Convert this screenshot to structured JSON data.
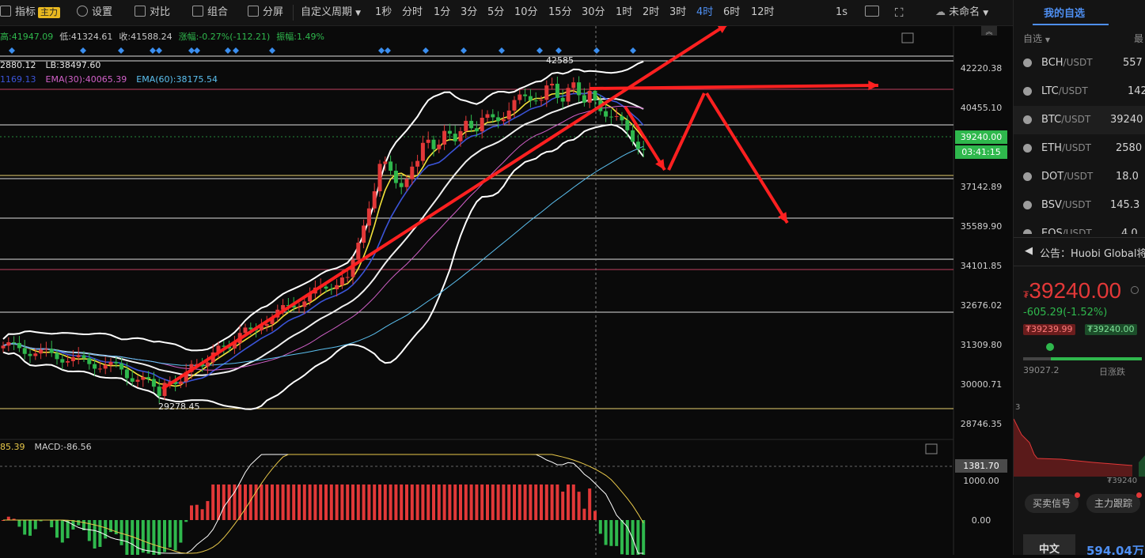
{
  "toolbar": {
    "indicator_label": "指标",
    "indicator_badge": "主力",
    "settings_label": "设置",
    "compare_label": "对比",
    "combo_label": "组合",
    "split_label": "分屏",
    "custom_period_label": "自定义周期",
    "periods": [
      "1秒",
      "分时",
      "1分",
      "3分",
      "5分",
      "10分",
      "15分",
      "30分",
      "1时",
      "2时",
      "3时",
      "4时",
      "6时",
      "12时"
    ],
    "active_period": "4时",
    "interval_label": "1s",
    "layout_name": "未命名"
  },
  "ohlc": {
    "high": "高:41947.09",
    "low": "低:41324.61",
    "close": "收:41588.24",
    "change": "涨幅:-0.27%(-112.21)",
    "amplitude": "振幅:1.49%"
  },
  "indicators": {
    "ub": "2880.12",
    "lb": "LB:38497.60",
    "ema_short": "1169.13",
    "ema30": "EMA(30):40065.39",
    "ema60": "EMA(60):38175.54",
    "macd_left": "85.39",
    "macd": "MACD:-86.56"
  },
  "annotations": {
    "peak": "42585",
    "trough": "29278.45"
  },
  "price_axis": [
    "42220.38",
    "40455.10",
    "37142.89",
    "35589.90",
    "34101.85",
    "32676.02",
    "31309.80",
    "30000.71",
    "28746.35"
  ],
  "current_price_tag": "39240.00",
  "countdown_tag": "03:41:15",
  "macd_axis": [
    "1381.70",
    "1000.00",
    "0.00"
  ],
  "colors": {
    "up": "#e23838",
    "down": "#2fb84d",
    "accent": "#4e8ff2",
    "arrow": "#ff2020"
  },
  "sidebar": {
    "title": "我的自选",
    "sub_left": "自选",
    "sub_right": "最",
    "pairs": [
      {
        "base": "BCH",
        "quote": "/USDT",
        "price": "557"
      },
      {
        "base": "LTC",
        "quote": "/USDT",
        "price": "142"
      },
      {
        "base": "BTC",
        "quote": "/USDT",
        "price": "39240"
      },
      {
        "base": "ETH",
        "quote": "/USDT",
        "price": "2580"
      },
      {
        "base": "DOT",
        "quote": "/USDT",
        "price": "18.0"
      },
      {
        "base": "BSV",
        "quote": "/USDT",
        "price": "145.3"
      },
      {
        "base": "EOS",
        "quote": "/USDT",
        "price": "4.0"
      }
    ],
    "notice": "公告：Huobi Global将于",
    "big_price": "39240.00",
    "currency_symbol": "₮",
    "change": "-605.29(-1.52%)",
    "bid": "₮39239.99",
    "ask": "₮39240.00",
    "day_low": "39027.2",
    "day_range_label": "日涨跌",
    "depth_left_label": "3",
    "depth_price": "₮39240",
    "btn_signal": "买卖信号",
    "btn_track": "主力跟踪",
    "bottom_label": "中文",
    "bottom_value": "594.04万"
  }
}
